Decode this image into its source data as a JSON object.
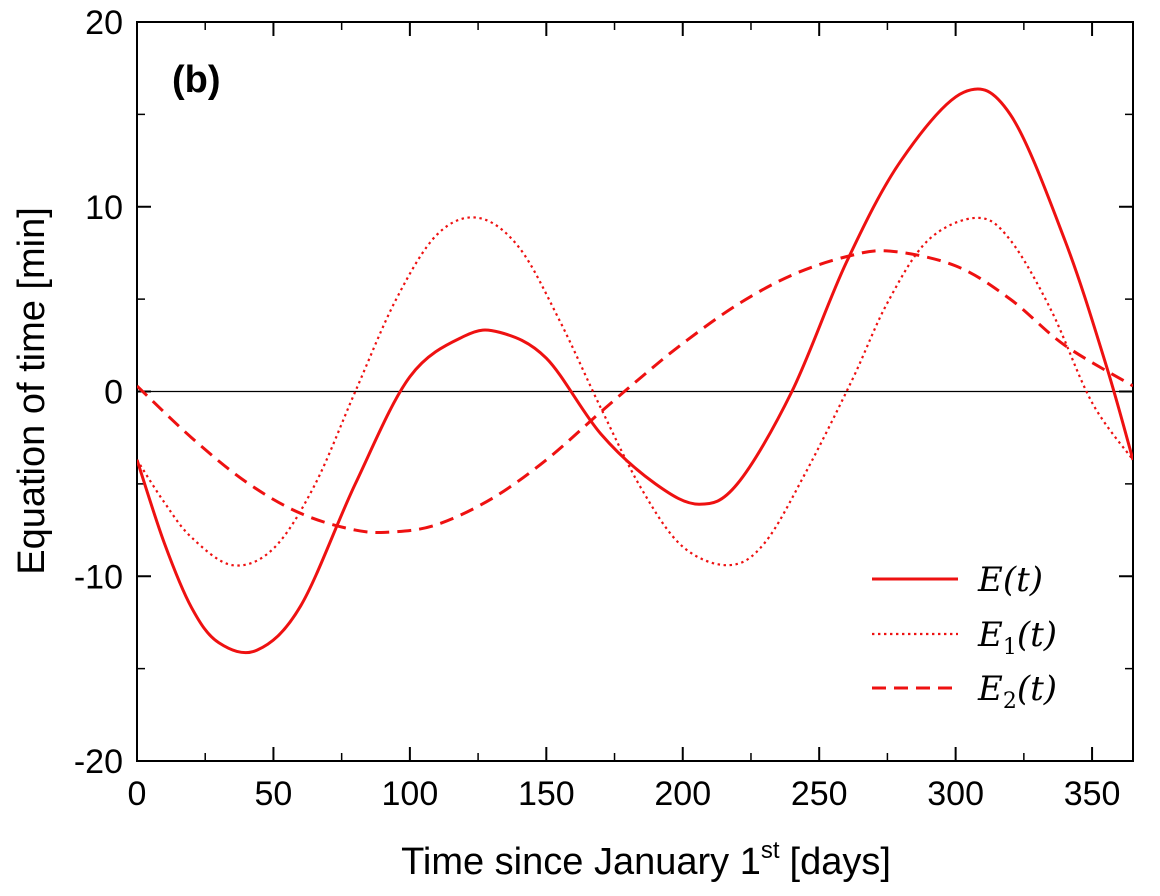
{
  "chart_data": {
    "type": "line",
    "panel_label": "(b)",
    "xlabel": "Time since January 1",
    "xlabel_superscript": "st",
    "xlabel_unit": "[days]",
    "ylabel": "Equation of time [min]",
    "xlim": [
      0,
      365
    ],
    "ylim": [
      -20,
      20
    ],
    "xticks": [
      0,
      50,
      100,
      150,
      200,
      250,
      300,
      350
    ],
    "xtick_labels": [
      "0",
      "50",
      "100",
      "150",
      "200",
      "250",
      "300",
      "350"
    ],
    "yticks": [
      -20,
      -10,
      0,
      10,
      20
    ],
    "ytick_labels": [
      "-20",
      "-10",
      "0",
      "10",
      "20"
    ],
    "grid": false,
    "zero_line": true,
    "legend_position": "bottom-right",
    "color": "#ee1111",
    "series": [
      {
        "name": "E(t)",
        "legend": {
          "main": "E",
          "sub": "",
          "arg": "(t)"
        },
        "style": "solid",
        "x": [
          0,
          10,
          20,
          30,
          44,
          60,
          80,
          100,
          120,
          133,
          150,
          170,
          190,
          206,
          220,
          240,
          260,
          280,
          303,
          320,
          340,
          355,
          365
        ],
        "y": [
          -3.7,
          -8.2,
          -11.7,
          -13.6,
          -14.0,
          -11.6,
          -5.0,
          0.8,
          3.0,
          3.2,
          1.8,
          -2.3,
          -5.0,
          -6.1,
          -5.0,
          0.0,
          7.0,
          12.5,
          16.2,
          15.0,
          8.2,
          1.5,
          -3.7
        ]
      },
      {
        "name": "E1(t)",
        "legend": {
          "main": "E",
          "sub": "1",
          "arg": "(t)"
        },
        "style": "dotted",
        "x": [
          0,
          10,
          20,
          35,
          50,
          65,
          80,
          95,
          110,
          125,
          140,
          155,
          170,
          185,
          200,
          217,
          230,
          245,
          262,
          275,
          290,
          308,
          320,
          335,
          350,
          365
        ],
        "y": [
          -3.7,
          -6.0,
          -7.9,
          -9.4,
          -8.5,
          -5.1,
          0.0,
          5.0,
          8.5,
          9.4,
          7.8,
          3.8,
          -0.9,
          -5.3,
          -8.4,
          -9.4,
          -8.2,
          -4.4,
          0.6,
          4.8,
          8.2,
          9.4,
          8.2,
          4.4,
          -0.6,
          -3.7
        ]
      },
      {
        "name": "E2(t)",
        "legend": {
          "main": "E",
          "sub": "2",
          "arg": "(t)"
        },
        "style": "dashed",
        "x": [
          0,
          20,
          40,
          60,
          80,
          94,
          110,
          130,
          150,
          170,
          185,
          200,
          220,
          240,
          260,
          276,
          300,
          320,
          340,
          365
        ],
        "y": [
          0.3,
          -2.5,
          -4.9,
          -6.6,
          -7.5,
          -7.6,
          -7.2,
          -5.8,
          -3.7,
          -1.1,
          0.8,
          2.6,
          4.7,
          6.3,
          7.3,
          7.6,
          6.8,
          5.0,
          2.5,
          0.3
        ]
      }
    ]
  }
}
